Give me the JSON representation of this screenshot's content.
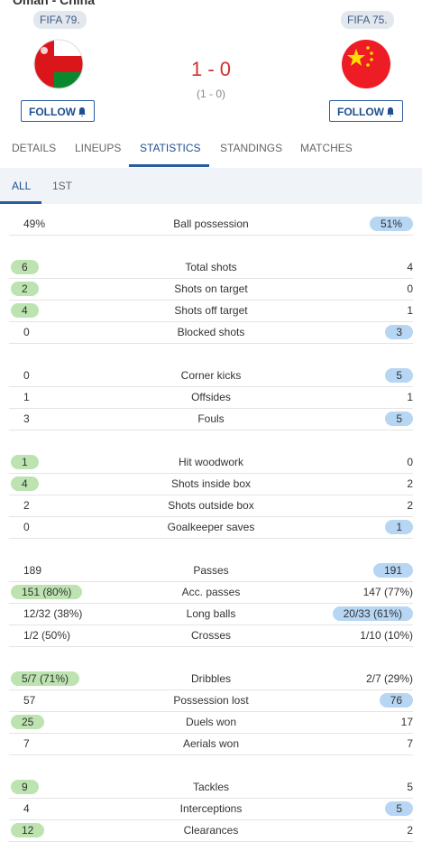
{
  "header": {
    "title": "Oman - China",
    "home": {
      "rating": "FIFA 79.",
      "follow": "FOLLOW"
    },
    "away": {
      "rating": "FIFA 75.",
      "follow": "FOLLOW"
    },
    "score": "1 - 0",
    "halftime": "(1 - 0)"
  },
  "tabs": [
    "DETAILS",
    "LINEUPS",
    "STATISTICS",
    "STANDINGS",
    "MATCHES"
  ],
  "periods": [
    "ALL",
    "1ST"
  ],
  "stats": [
    [
      {
        "name": "Ball possession",
        "home": "49%",
        "away": "51%",
        "highlight": "away"
      }
    ],
    [
      {
        "name": "Total shots",
        "home": "6",
        "away": "4",
        "highlight": "home"
      },
      {
        "name": "Shots on target",
        "home": "2",
        "away": "0",
        "highlight": "home"
      },
      {
        "name": "Shots off target",
        "home": "4",
        "away": "1",
        "highlight": "home"
      },
      {
        "name": "Blocked shots",
        "home": "0",
        "away": "3",
        "highlight": "away"
      }
    ],
    [
      {
        "name": "Corner kicks",
        "home": "0",
        "away": "5",
        "highlight": "away"
      },
      {
        "name": "Offsides",
        "home": "1",
        "away": "1",
        "highlight": "none"
      },
      {
        "name": "Fouls",
        "home": "3",
        "away": "5",
        "highlight": "away"
      }
    ],
    [
      {
        "name": "Hit woodwork",
        "home": "1",
        "away": "0",
        "highlight": "home"
      },
      {
        "name": "Shots inside box",
        "home": "4",
        "away": "2",
        "highlight": "home"
      },
      {
        "name": "Shots outside box",
        "home": "2",
        "away": "2",
        "highlight": "none"
      },
      {
        "name": "Goalkeeper saves",
        "home": "0",
        "away": "1",
        "highlight": "away"
      }
    ],
    [
      {
        "name": "Passes",
        "home": "189",
        "away": "191",
        "highlight": "away"
      },
      {
        "name": "Acc. passes",
        "home": "151 (80%)",
        "away": "147 (77%)",
        "highlight": "home"
      },
      {
        "name": "Long balls",
        "home": "12/32 (38%)",
        "away": "20/33 (61%)",
        "highlight": "away"
      },
      {
        "name": "Crosses",
        "home": "1/2 (50%)",
        "away": "1/10 (10%)",
        "highlight": "none"
      }
    ],
    [
      {
        "name": "Dribbles",
        "home": "5/7 (71%)",
        "away": "2/7 (29%)",
        "highlight": "home"
      },
      {
        "name": "Possession lost",
        "home": "57",
        "away": "76",
        "highlight": "away"
      },
      {
        "name": "Duels won",
        "home": "25",
        "away": "17",
        "highlight": "home"
      },
      {
        "name": "Aerials won",
        "home": "7",
        "away": "7",
        "highlight": "none"
      }
    ],
    [
      {
        "name": "Tackles",
        "home": "9",
        "away": "5",
        "highlight": "home"
      },
      {
        "name": "Interceptions",
        "home": "4",
        "away": "5",
        "highlight": "away"
      },
      {
        "name": "Clearances",
        "home": "12",
        "away": "2",
        "highlight": "home"
      }
    ]
  ]
}
